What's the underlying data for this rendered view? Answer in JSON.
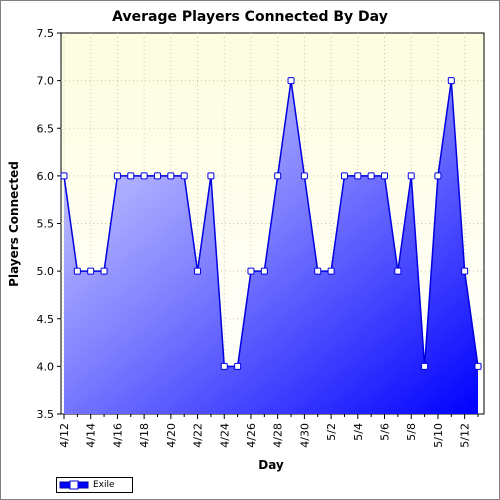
{
  "chart_data": {
    "type": "area",
    "title": "Average Players Connected By Day",
    "xlabel": "Day",
    "ylabel": "Players Connected",
    "ylim": [
      3.5,
      7.5
    ],
    "yticks": [
      "3.5",
      "4.0",
      "4.5",
      "5.0",
      "5.5",
      "6.0",
      "6.5",
      "7.0",
      "7.5"
    ],
    "x": [
      "4/12",
      "4/13",
      "4/14",
      "4/15",
      "4/16",
      "4/17",
      "4/18",
      "4/19",
      "4/20",
      "4/21",
      "4/22",
      "4/23",
      "4/24",
      "4/25",
      "4/26",
      "4/27",
      "4/28",
      "4/29",
      "4/30",
      "5/1",
      "5/2",
      "5/3",
      "5/4",
      "5/5",
      "5/6",
      "5/7",
      "5/8",
      "5/9",
      "5/10",
      "5/11",
      "5/12",
      "5/13"
    ],
    "xtick_labels": [
      "4/12",
      "4/14",
      "4/16",
      "4/18",
      "4/20",
      "4/22",
      "4/24",
      "4/26",
      "4/28",
      "4/30",
      "5/2",
      "5/4",
      "5/6",
      "5/8",
      "5/10",
      "5/12"
    ],
    "series": [
      {
        "name": "Exile",
        "values": [
          6,
          5,
          5,
          5,
          6,
          6,
          6,
          6,
          6,
          6,
          5,
          6,
          4,
          4,
          5,
          5,
          6,
          7,
          6,
          5,
          5,
          6,
          6,
          6,
          6,
          5,
          6,
          4,
          6,
          7,
          5,
          4
        ]
      }
    ],
    "grid": true,
    "legend_position": "bottom-left",
    "colors": {
      "plot_bg_top": "#fdfde0",
      "plot_bg_bottom": "#ffffff",
      "area_light": "#d4d4ff",
      "area_dark": "#0000ff",
      "line": "#0000e0",
      "marker_fill": "#ffffff"
    }
  }
}
